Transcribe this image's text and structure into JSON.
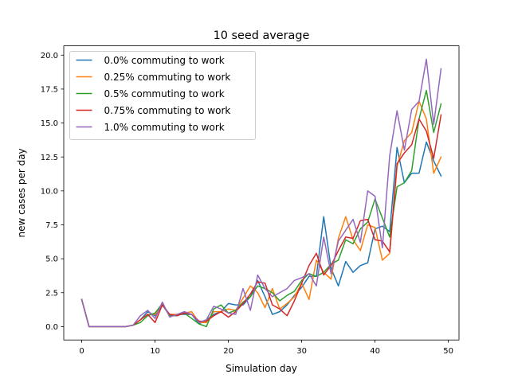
{
  "chart_data": {
    "type": "line",
    "title": "10 seed average",
    "xlabel": "Simulation day",
    "ylabel": "new cases per day",
    "xlim": [
      -2.45,
      51.45
    ],
    "ylim": [
      -0.985,
      20.685
    ],
    "xticks": [
      0,
      10,
      20,
      30,
      40,
      50
    ],
    "yticks": [
      0.0,
      2.5,
      5.0,
      7.5,
      10.0,
      12.5,
      15.0,
      17.5,
      20.0
    ],
    "xtick_labels": [
      "0",
      "10",
      "20",
      "30",
      "40",
      "50"
    ],
    "ytick_labels": [
      "0.0",
      "2.5",
      "5.0",
      "7.5",
      "10.0",
      "12.5",
      "15.0",
      "17.5",
      "20.0"
    ],
    "grid": false,
    "legend_position": "top-left",
    "x": [
      0,
      1,
      2,
      3,
      4,
      5,
      6,
      7,
      8,
      9,
      10,
      11,
      12,
      13,
      14,
      15,
      16,
      17,
      18,
      19,
      20,
      21,
      22,
      23,
      24,
      25,
      26,
      27,
      28,
      29,
      30,
      31,
      32,
      33,
      34,
      35,
      36,
      37,
      38,
      39,
      40,
      41,
      42,
      43,
      44,
      45,
      46,
      47,
      48,
      49
    ],
    "series": [
      {
        "name": "0.0% commuting to work",
        "color": "#1f77b4",
        "values": [
          2.0,
          0.0,
          0.0,
          0.0,
          0.0,
          0.0,
          0.0,
          0.1,
          0.5,
          1.1,
          0.8,
          1.6,
          0.8,
          0.9,
          0.9,
          0.9,
          0.2,
          0.5,
          0.9,
          1.1,
          1.7,
          1.6,
          1.6,
          2.2,
          3.4,
          2.2,
          0.9,
          1.1,
          1.6,
          2.3,
          2.9,
          3.7,
          3.7,
          8.1,
          4.3,
          3.0,
          4.8,
          4.0,
          4.5,
          4.7,
          7.2,
          7.4,
          7.0,
          13.2,
          10.6,
          11.3,
          11.3,
          13.6,
          12.2,
          11.1
        ]
      },
      {
        "name": "0.25% commuting to work",
        "color": "#ff7f0e",
        "values": [
          2.0,
          0.0,
          0.0,
          0.0,
          0.0,
          0.0,
          0.0,
          0.1,
          0.5,
          0.9,
          0.9,
          1.6,
          0.9,
          0.9,
          1.0,
          1.1,
          0.3,
          0.3,
          1.1,
          1.1,
          1.3,
          1.2,
          2.1,
          3.0,
          2.5,
          1.4,
          2.8,
          1.3,
          1.7,
          2.2,
          3.2,
          2.0,
          4.9,
          4.0,
          3.5,
          6.5,
          8.1,
          6.4,
          5.6,
          7.5,
          7.3,
          4.9,
          5.4,
          11.8,
          13.7,
          14.3,
          16.6,
          15.3,
          11.3,
          12.5
        ]
      },
      {
        "name": "0.5% commuting to work",
        "color": "#2ca02c",
        "values": [
          2.0,
          0.0,
          0.0,
          0.0,
          0.0,
          0.0,
          0.0,
          0.1,
          0.3,
          0.8,
          1.0,
          1.7,
          0.8,
          0.8,
          1.0,
          0.6,
          0.2,
          0.0,
          1.3,
          1.6,
          1.0,
          1.2,
          1.8,
          2.2,
          3.0,
          2.8,
          2.5,
          1.9,
          2.3,
          2.6,
          3.4,
          3.9,
          3.7,
          4.0,
          4.6,
          4.9,
          6.4,
          6.1,
          7.2,
          7.7,
          9.4,
          8.0,
          6.6,
          10.3,
          10.6,
          11.5,
          15.3,
          17.4,
          14.3,
          16.4
        ]
      },
      {
        "name": "0.75% commuting to work",
        "color": "#d62728",
        "values": [
          2.0,
          0.0,
          0.0,
          0.0,
          0.0,
          0.0,
          0.0,
          0.1,
          0.5,
          0.9,
          0.3,
          1.6,
          0.9,
          0.8,
          1.0,
          0.9,
          0.4,
          0.4,
          0.8,
          1.1,
          0.7,
          1.1,
          1.7,
          2.4,
          3.3,
          3.2,
          1.6,
          1.3,
          0.8,
          1.9,
          3.2,
          4.5,
          5.4,
          3.8,
          4.5,
          5.6,
          6.6,
          6.5,
          7.8,
          7.9,
          6.4,
          6.3,
          5.5,
          12.0,
          12.8,
          13.4,
          15.3,
          14.4,
          12.4,
          15.6
        ]
      },
      {
        "name": "1.0% commuting to work",
        "color": "#9467bd",
        "values": [
          2.0,
          0.0,
          0.0,
          0.0,
          0.0,
          0.0,
          0.0,
          0.1,
          0.8,
          1.2,
          0.6,
          1.8,
          0.7,
          0.9,
          1.1,
          0.9,
          0.3,
          0.5,
          1.5,
          1.3,
          1.0,
          0.9,
          2.8,
          1.2,
          3.8,
          2.8,
          2.2,
          2.5,
          2.8,
          3.4,
          3.6,
          3.9,
          3.0,
          6.6,
          3.9,
          6.3,
          7.1,
          7.9,
          6.2,
          10.0,
          9.6,
          5.8,
          12.6,
          15.9,
          13.0,
          16.0,
          16.6,
          19.7,
          14.9,
          19.0
        ]
      }
    ]
  }
}
